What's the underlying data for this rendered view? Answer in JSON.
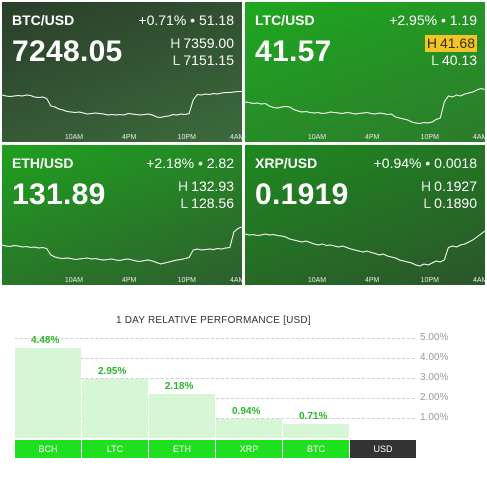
{
  "tiles": [
    {
      "pair": "BTC/USD",
      "change_pct": "+0.71%",
      "change_abs": "51.18",
      "price": "7248.05",
      "high_label": "H",
      "high": "7359.00",
      "low_label": "L",
      "low": "7151.15",
      "bg": [
        "#2a3e2a",
        "#3c6b3c"
      ],
      "high_highlight": false,
      "sparkline": [
        0.74,
        0.72,
        0.71,
        0.72,
        0.73,
        0.72,
        0.74,
        0.73,
        0.7,
        0.69,
        0.7,
        0.67,
        0.52,
        0.5,
        0.46,
        0.44,
        0.41,
        0.4,
        0.39,
        0.4,
        0.38,
        0.36,
        0.37,
        0.38,
        0.37,
        0.36,
        0.34,
        0.35,
        0.34,
        0.35,
        0.34,
        0.37,
        0.36,
        0.35,
        0.34,
        0.35,
        0.36,
        0.34,
        0.3,
        0.29,
        0.31,
        0.32,
        0.35,
        0.34,
        0.36,
        0.35,
        0.37,
        0.64,
        0.75,
        0.74,
        0.76,
        0.75,
        0.77,
        0.76,
        0.78,
        0.79,
        0.79,
        0.8,
        0.81,
        0.81
      ],
      "ticks": [
        "10AM",
        "4PM",
        "10PM",
        "4AM"
      ]
    },
    {
      "pair": "LTC/USD",
      "change_pct": "+2.95%",
      "change_abs": "1.19",
      "price": "41.57",
      "high_label": "H",
      "high": "41.68",
      "low_label": "L",
      "low": "40.13",
      "bg": [
        "#1ea81e",
        "#2d7a2d"
      ],
      "high_highlight": true,
      "sparkline": [
        0.6,
        0.59,
        0.57,
        0.58,
        0.56,
        0.57,
        0.52,
        0.49,
        0.48,
        0.5,
        0.51,
        0.5,
        0.45,
        0.42,
        0.4,
        0.41,
        0.39,
        0.38,
        0.39,
        0.37,
        0.38,
        0.4,
        0.39,
        0.38,
        0.37,
        0.39,
        0.38,
        0.36,
        0.37,
        0.38,
        0.39,
        0.37,
        0.36,
        0.38,
        0.37,
        0.35,
        0.36,
        0.3,
        0.28,
        0.26,
        0.24,
        0.2,
        0.18,
        0.17,
        0.19,
        0.18,
        0.2,
        0.25,
        0.28,
        0.6,
        0.72,
        0.7,
        0.74,
        0.72,
        0.76,
        0.78,
        0.8,
        0.84,
        0.87,
        0.85
      ],
      "ticks": [
        "10AM",
        "4PM",
        "10PM",
        "4AM"
      ]
    },
    {
      "pair": "ETH/USD",
      "change_pct": "+2.18%",
      "change_abs": "2.82",
      "price": "131.89",
      "high_label": "H",
      "high": "132.93",
      "low_label": "L",
      "low": "128.56",
      "bg": [
        "#1fa01f",
        "#2e5e2e"
      ],
      "high_highlight": false,
      "sparkline": [
        0.6,
        0.58,
        0.57,
        0.59,
        0.58,
        0.56,
        0.57,
        0.55,
        0.56,
        0.54,
        0.55,
        0.53,
        0.4,
        0.36,
        0.34,
        0.33,
        0.34,
        0.33,
        0.31,
        0.32,
        0.33,
        0.34,
        0.32,
        0.33,
        0.31,
        0.3,
        0.31,
        0.32,
        0.3,
        0.29,
        0.31,
        0.32,
        0.3,
        0.28,
        0.27,
        0.29,
        0.3,
        0.28,
        0.25,
        0.22,
        0.24,
        0.26,
        0.28,
        0.3,
        0.31,
        0.33,
        0.35,
        0.5,
        0.52,
        0.5,
        0.51,
        0.52,
        0.51,
        0.53,
        0.52,
        0.54,
        0.55,
        0.86,
        0.93,
        0.96
      ],
      "ticks": [
        "10AM",
        "4PM",
        "10PM",
        "4AM"
      ]
    },
    {
      "pair": "XRP/USD",
      "change_pct": "+0.94%",
      "change_abs": "0.0018",
      "price": "0.1919",
      "high_label": "H",
      "high": "0.1927",
      "low_label": "L",
      "low": "0.1890",
      "bg": [
        "#1e8a1e",
        "#2b552b"
      ],
      "high_highlight": false,
      "sparkline": [
        0.82,
        0.8,
        0.81,
        0.79,
        0.8,
        0.82,
        0.8,
        0.81,
        0.79,
        0.78,
        0.76,
        0.72,
        0.7,
        0.68,
        0.66,
        0.68,
        0.65,
        0.62,
        0.6,
        0.62,
        0.59,
        0.6,
        0.58,
        0.56,
        0.58,
        0.55,
        0.52,
        0.5,
        0.48,
        0.46,
        0.48,
        0.45,
        0.43,
        0.4,
        0.42,
        0.38,
        0.36,
        0.34,
        0.3,
        0.28,
        0.26,
        0.24,
        0.2,
        0.18,
        0.22,
        0.2,
        0.24,
        0.28,
        0.26,
        0.3,
        0.55,
        0.58,
        0.56,
        0.6,
        0.62,
        0.66,
        0.7,
        0.76,
        0.82,
        0.88
      ],
      "ticks": [
        "10AM",
        "4PM",
        "10PM",
        "4AM"
      ]
    }
  ],
  "performance": {
    "title": "1 DAY RELATIVE PERFORMANCE  [USD]",
    "y_ticks": [
      "5.00%",
      "4.00%",
      "3.00%",
      "2.00%",
      "1.00%"
    ],
    "bar_color": "#d6f6d6",
    "label_color": "#2bb52b",
    "chart_data": {
      "type": "bar",
      "categories": [
        "BCH",
        "LTC",
        "ETH",
        "XRP",
        "BTC"
      ],
      "values": [
        4.48,
        2.95,
        2.18,
        0.94,
        0.71
      ],
      "value_labels": [
        "4.48%",
        "2.95%",
        "2.18%",
        "0.94%",
        "0.71%"
      ],
      "title": "1 DAY RELATIVE PERFORMANCE  [USD]",
      "ylim": [
        0,
        5
      ],
      "grid": true
    },
    "categories": [
      "BCH",
      "LTC",
      "ETH",
      "XRP",
      "BTC",
      "USD"
    ],
    "base_category": "USD"
  }
}
